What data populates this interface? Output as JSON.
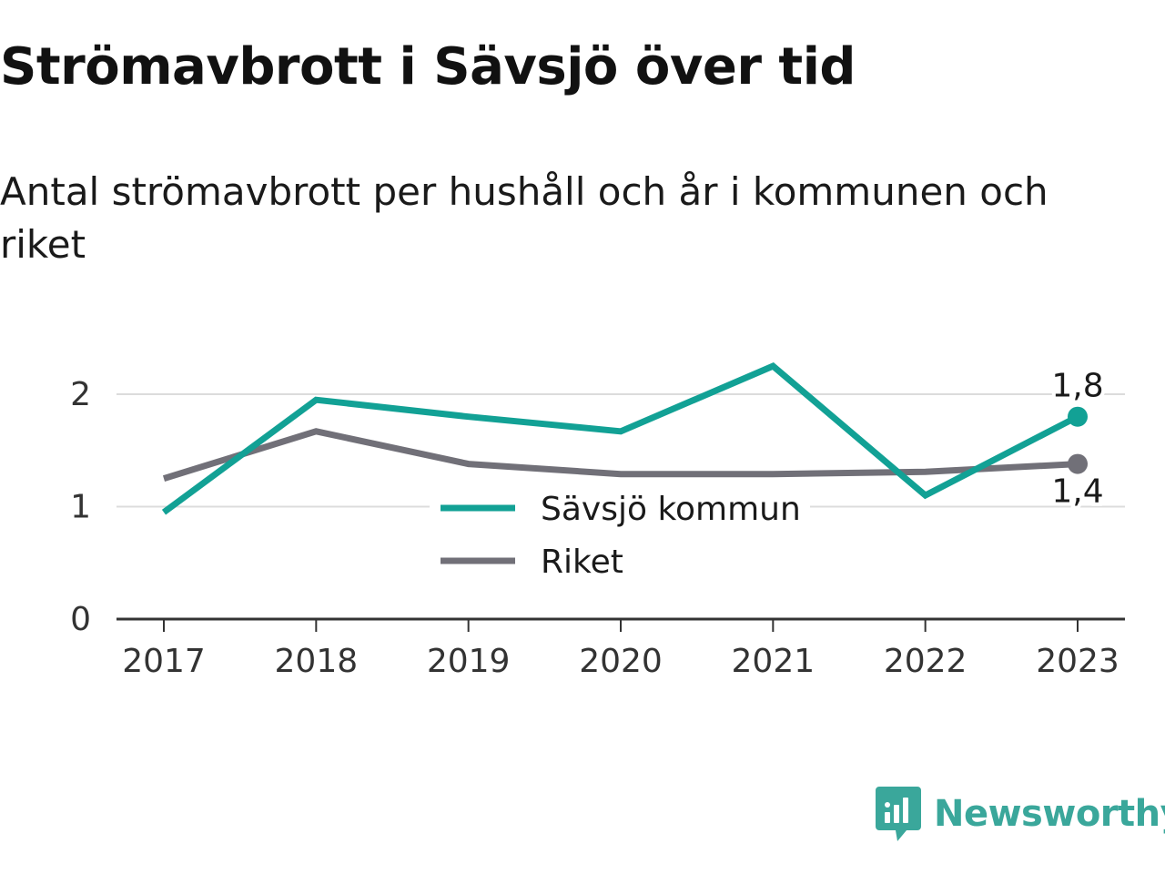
{
  "title": "Strömavbrott i Sävsjö över tid",
  "subtitle": "Antal strömavbrott per hushåll och år i kommunen och riket",
  "brand": {
    "name": "Newsworthy",
    "icon": "newsworthy-logo-icon",
    "color": "#3aa79b"
  },
  "chart_data": {
    "type": "line",
    "x": [
      "2017",
      "2018",
      "2019",
      "2020",
      "2021",
      "2022",
      "2023"
    ],
    "ylim": [
      0,
      2.3
    ],
    "yticks": [
      "0",
      "1",
      "2"
    ],
    "grid": true,
    "legend_position": "center",
    "series": [
      {
        "name": "Sävsjö kommun",
        "color": "#12a195",
        "values": [
          0.95,
          1.95,
          1.8,
          1.67,
          2.25,
          1.1,
          1.8
        ],
        "end_label": "1,8"
      },
      {
        "name": "Riket",
        "color": "#717078",
        "values": [
          1.25,
          1.67,
          1.38,
          1.29,
          1.29,
          1.31,
          1.38
        ],
        "end_label": "1,4"
      }
    ]
  }
}
